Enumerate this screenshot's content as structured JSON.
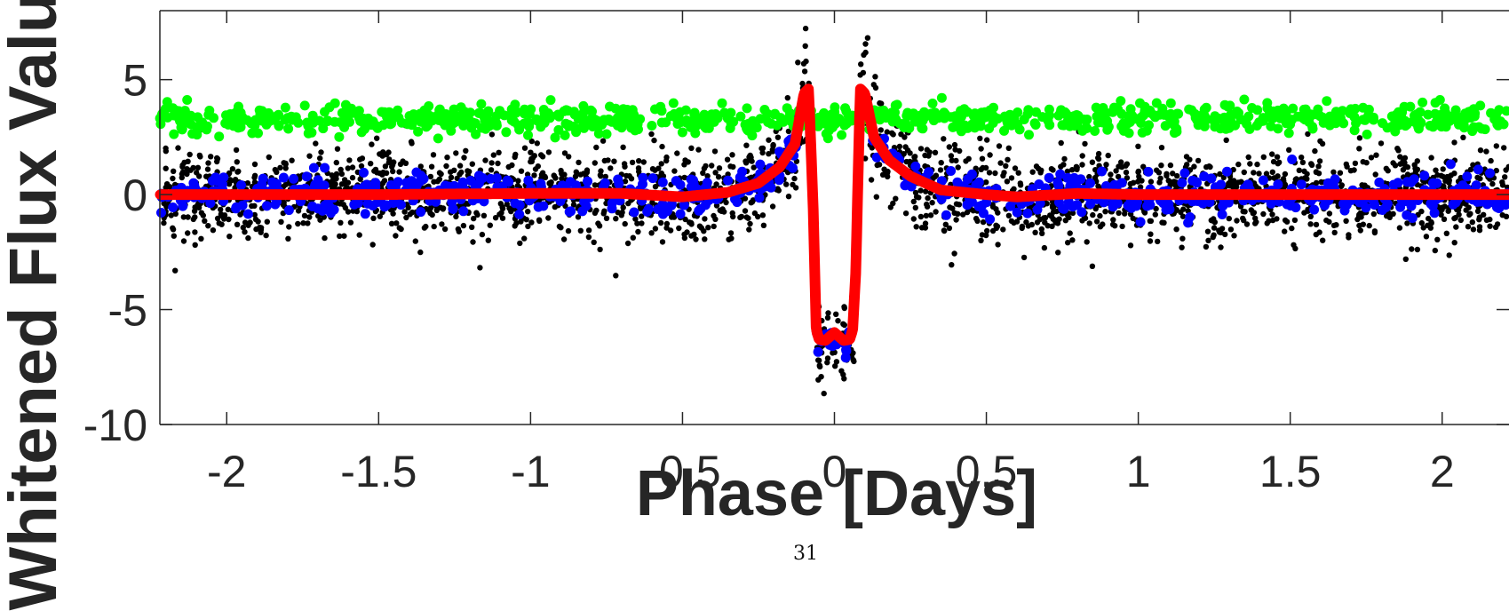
{
  "chart_data": {
    "type": "scatter",
    "title": "",
    "xlabel": "Phase [Days]",
    "ylabel": "Whitened Flux Value",
    "xlim": [
      -2.22,
      2.22
    ],
    "ylim": [
      -10,
      8
    ],
    "xticks": [
      -2,
      -1.5,
      -1,
      -0.5,
      0,
      0.5,
      1,
      1.5,
      2
    ],
    "xtick_labels": [
      "-2",
      "-1.5",
      "-1",
      "-0.5",
      "0",
      "0.5",
      "1",
      "1.5",
      "2"
    ],
    "yticks": [
      5,
      0,
      -5,
      -10
    ],
    "ytick_labels": [
      "5",
      "0",
      "-5",
      "-10"
    ],
    "grid": false,
    "legend": "none",
    "series": [
      {
        "style": "points",
        "color": "#000000",
        "description_values": {
          "baseline_level": 0,
          "scatter_half_width": 2.5,
          "transit_depth": -6.3,
          "transit_half_width_days": 0.065,
          "spike_peak": 7.3
        }
      },
      {
        "style": "points",
        "color": "#0000ff",
        "description_values": {
          "baseline_level": 0,
          "scatter_half_width": 0.9,
          "transit_depth": -6.2
        }
      },
      {
        "style": "points",
        "color": "#00ff00",
        "description_values": {
          "baseline_level": 3.3,
          "scatter_half_width": 0.6
        }
      },
      {
        "style": "line-with-markers",
        "color": "#ff0000",
        "x": [
          -2.22,
          -1.5,
          -1.0,
          -0.7,
          -0.5,
          -0.35,
          -0.25,
          -0.18,
          -0.13,
          -0.1,
          -0.085,
          -0.07,
          -0.06,
          -0.05,
          -0.03,
          0.0,
          0.03,
          0.05,
          0.06,
          0.07,
          0.085,
          0.1,
          0.13,
          0.18,
          0.25,
          0.35,
          0.5,
          0.6,
          0.8,
          1.0,
          1.5,
          2.22
        ],
        "y": [
          0,
          0,
          0.05,
          0.05,
          -0.1,
          0.1,
          0.5,
          1.2,
          2.2,
          4.4,
          4.6,
          -0.5,
          -5.9,
          -6.3,
          -6.35,
          -6.0,
          -6.35,
          -6.3,
          -5.9,
          -3.4,
          4.6,
          4.4,
          2.5,
          1.5,
          0.8,
          0.2,
          0.0,
          -0.1,
          0.05,
          0,
          0,
          0
        ]
      }
    ]
  },
  "page_number": "31"
}
